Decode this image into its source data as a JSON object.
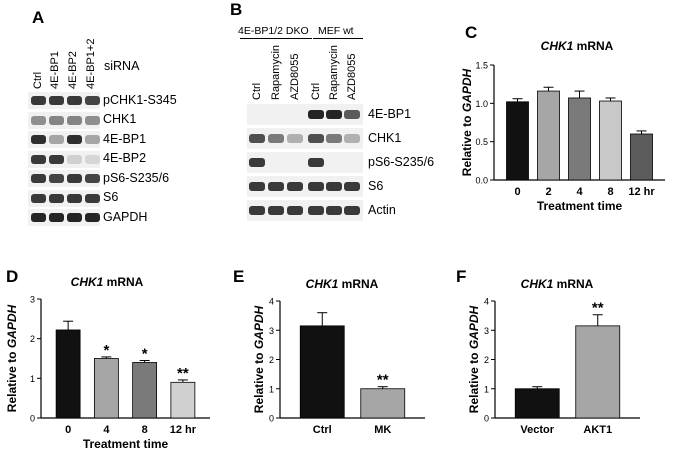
{
  "panelA": {
    "letter": "A",
    "siRNA_label": "siRNA",
    "lanes": [
      "Ctrl",
      "4E-BP1",
      "4E-BP2",
      "4E-BP1+2"
    ],
    "blots": [
      {
        "label": "pCHK1-S345",
        "intensity": [
          0.85,
          0.85,
          0.85,
          0.8
        ]
      },
      {
        "label": "CHK1",
        "intensity": [
          0.45,
          0.5,
          0.5,
          0.45
        ]
      },
      {
        "label": "4E-BP1",
        "intensity": [
          0.9,
          0.35,
          0.9,
          0.35
        ]
      },
      {
        "label": "4E-BP2",
        "intensity": [
          0.85,
          0.85,
          0.15,
          0.12
        ]
      },
      {
        "label": "pS6-S235/6",
        "intensity": [
          0.85,
          0.8,
          0.85,
          0.8
        ]
      },
      {
        "label": "S6",
        "intensity": [
          0.85,
          0.85,
          0.85,
          0.85
        ]
      },
      {
        "label": "GAPDH",
        "intensity": [
          0.95,
          0.95,
          0.95,
          0.95
        ]
      }
    ]
  },
  "panelB": {
    "letter": "B",
    "group1": "4E-BP1/2 DKO",
    "group2": "MEF wt",
    "lanes": [
      "Ctrl",
      "Rapamycin",
      "AZD8055",
      "Ctrl",
      "Rapamycin",
      "AZD8055"
    ],
    "blots": [
      {
        "label": "4E-BP1",
        "intensity": [
          0,
          0,
          0,
          0.95,
          0.95,
          0.7
        ]
      },
      {
        "label": "CHK1",
        "intensity": [
          0.75,
          0.55,
          0.3,
          0.75,
          0.55,
          0.3
        ]
      },
      {
        "label": "pS6-S235/6",
        "intensity": [
          0.85,
          0,
          0,
          0.85,
          0,
          0
        ]
      },
      {
        "label": "S6",
        "intensity": [
          0.85,
          0.85,
          0.85,
          0.85,
          0.85,
          0.85
        ]
      },
      {
        "label": "Actin",
        "intensity": [
          0.85,
          0.85,
          0.85,
          0.85,
          0.85,
          0.85
        ]
      }
    ]
  },
  "chart_data": [
    {
      "panel": "C",
      "type": "bar",
      "title": "CHK1 mRNA",
      "ylabel": "Relative to GAPDH",
      "xlabel": "Treatment time",
      "categories": [
        "0",
        "2",
        "4",
        "8",
        "12 hr"
      ],
      "values": [
        1.02,
        1.16,
        1.07,
        1.03,
        0.6
      ],
      "errors": [
        0.04,
        0.05,
        0.09,
        0.04,
        0.04
      ],
      "colors": [
        "#111111",
        "#a6a6a6",
        "#7a7a7a",
        "#c8c8c8",
        "#5c5c5c"
      ],
      "annotations": [
        "",
        "",
        "",
        "",
        ""
      ],
      "ylim": [
        0,
        1.5
      ],
      "yticks": [
        "0.0",
        "0.5",
        "1.0",
        "1.5"
      ]
    },
    {
      "panel": "D",
      "type": "bar",
      "title": "CHK1 mRNA",
      "ylabel": "Relative to GAPDH",
      "xlabel": "Treatment time",
      "categories": [
        "0",
        "4",
        "8",
        "12 hr"
      ],
      "values": [
        2.22,
        1.5,
        1.4,
        0.9
      ],
      "errors": [
        0.22,
        0.04,
        0.05,
        0.06
      ],
      "colors": [
        "#111111",
        "#a6a6a6",
        "#7a7a7a",
        "#d0d0d0"
      ],
      "annotations": [
        "",
        "*",
        "*",
        "**"
      ],
      "ylim": [
        0,
        3
      ],
      "yticks": [
        "0",
        "1",
        "2",
        "3"
      ]
    },
    {
      "panel": "E",
      "type": "bar",
      "title": "CHK1 mRNA",
      "ylabel": "Relative to GAPDH",
      "xlabel": "",
      "categories": [
        "Ctrl",
        "MK"
      ],
      "values": [
        3.15,
        1.0
      ],
      "errors": [
        0.45,
        0.07
      ],
      "colors": [
        "#111111",
        "#a6a6a6"
      ],
      "annotations": [
        "",
        "**"
      ],
      "ylim": [
        0,
        4
      ],
      "yticks": [
        "0",
        "1",
        "2",
        "3",
        "4"
      ]
    },
    {
      "panel": "F",
      "type": "bar",
      "title": "CHK1 mRNA",
      "ylabel": "Relative to GAPDH",
      "xlabel": "",
      "categories": [
        "Vector",
        "AKT1"
      ],
      "values": [
        1.0,
        3.15
      ],
      "errors": [
        0.07,
        0.38
      ],
      "colors": [
        "#111111",
        "#a6a6a6"
      ],
      "annotations": [
        "",
        "**"
      ],
      "ylim": [
        0,
        4
      ],
      "yticks": [
        "0",
        "1",
        "2",
        "3",
        "4"
      ]
    }
  ]
}
